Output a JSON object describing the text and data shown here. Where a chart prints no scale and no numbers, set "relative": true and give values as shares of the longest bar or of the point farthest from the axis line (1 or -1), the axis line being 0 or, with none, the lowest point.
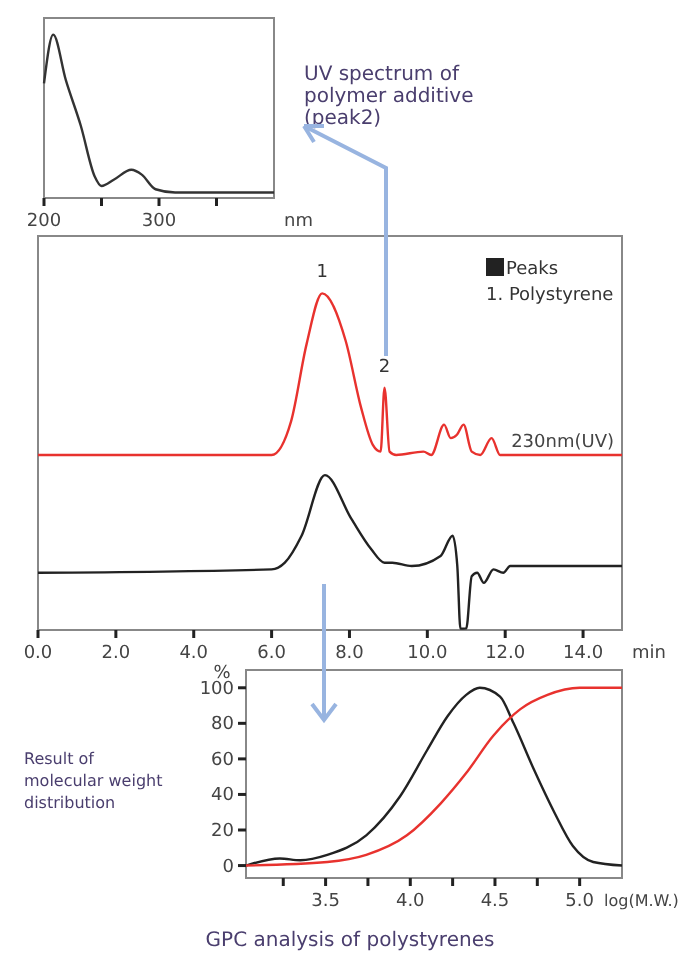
{
  "chart_data": [
    {
      "type": "line",
      "relative": true,
      "xlim": [
        200,
        400
      ],
      "xticks": [
        200,
        {
          "value": 250,
          "label": null
        },
        300,
        {
          "value": 350,
          "label": null
        }
      ],
      "xlabel": "nm",
      "x": [
        200,
        208,
        219,
        232,
        244,
        250,
        261,
        276,
        285,
        297,
        314,
        400
      ],
      "series": [
        {
          "color": "#333333",
          "values": [
            0.7,
            1,
            0.72,
            0.44,
            0.13,
            0.07,
            0.11,
            0.17,
            0.14,
            0.05,
            0.03,
            0.03
          ]
        }
      ],
      "annotations": [
        "UV spectrum of polymer additive (peak2)"
      ]
    },
    {
      "type": "line",
      "relative": true,
      "xlim": [
        0,
        15
      ],
      "xlabel": "min",
      "xticks": [
        {
          "value": 0,
          "label": "0.0"
        },
        {
          "value": 2,
          "label": "2.0"
        },
        {
          "value": 4,
          "label": "4.0"
        },
        {
          "value": 6,
          "label": "6.0"
        },
        {
          "value": 8,
          "label": "8.0"
        },
        {
          "value": 10,
          "label": "10.0"
        },
        {
          "value": 12,
          "label": "12.0"
        },
        {
          "value": 14,
          "label": "14.0"
        }
      ],
      "series": [
        {
          "name": "230nm(UV)",
          "color": "#e8322e",
          "x": [
            0,
            6.0,
            6.5,
            6.9,
            7.3,
            7.9,
            8.3,
            8.6,
            8.8,
            8.9,
            9.03,
            9.2,
            9.9,
            10.1,
            10.43,
            10.6,
            10.76,
            10.93,
            11.14,
            11.36,
            11.65,
            11.87,
            15
          ],
          "values": [
            0.52,
            0.52,
            0.62,
            0.85,
            1.0,
            0.86,
            0.66,
            0.55,
            0.53,
            0.72,
            0.53,
            0.52,
            0.53,
            0.52,
            0.61,
            0.57,
            0.58,
            0.61,
            0.53,
            0.52,
            0.57,
            0.52,
            0.52
          ]
        },
        {
          "color": "#222222",
          "x": [
            0,
            6.0,
            6.34,
            6.77,
            7.37,
            8.05,
            8.56,
            8.9,
            9.1,
            9.6,
            10.34,
            10.65,
            10.77,
            10.85,
            11.0,
            11.14,
            11.28,
            11.45,
            11.7,
            11.95,
            12.13,
            15
          ],
          "values": [
            0.17,
            0.18,
            0.2,
            0.28,
            0.46,
            0.33,
            0.24,
            0.2,
            0.2,
            0.19,
            0.22,
            0.28,
            0.19,
            0.004,
            0.005,
            0.16,
            0.17,
            0.14,
            0.18,
            0.17,
            0.19,
            0.19
          ]
        }
      ],
      "annotations": [
        {
          "text": "1",
          "x": 7.3,
          "y": 1.0
        },
        {
          "text": "2",
          "x": 8.9,
          "y": 0.72
        },
        "Peaks",
        "1. Polystyrene"
      ]
    },
    {
      "type": "line",
      "xlim": [
        3.03,
        5.25
      ],
      "ylim": [
        -7,
        110
      ],
      "xlabel": "log(M.W.)",
      "ylabel": "%",
      "xticks": [
        {
          "value": 3.25,
          "label": null
        },
        3.5,
        {
          "value": 3.75,
          "label": null
        },
        {
          "value": 4,
          "label": "4.0"
        },
        {
          "value": 4.25,
          "label": null
        },
        4.5,
        {
          "value": 4.75,
          "label": null
        },
        {
          "value": 5,
          "label": "5.0"
        }
      ],
      "yticks": [
        0,
        20,
        40,
        60,
        80,
        100
      ],
      "series": [
        {
          "color": "#222222",
          "x": [
            3.03,
            3.23,
            3.35,
            3.51,
            3.74,
            3.94,
            4.1,
            4.22,
            4.33,
            4.41,
            4.53,
            4.61,
            4.73,
            4.85,
            4.96,
            5.08,
            5.25
          ],
          "values": [
            0,
            4,
            3,
            6,
            17,
            39,
            65,
            84,
            96,
            100,
            95,
            80,
            54,
            30,
            11,
            2,
            0
          ]
        },
        {
          "color": "#e8322e",
          "x": [
            3.03,
            3.51,
            3.74,
            3.98,
            4.18,
            4.33,
            4.49,
            4.65,
            4.81,
            5.0,
            5.25
          ],
          "values": [
            0,
            2,
            6,
            17,
            35,
            52,
            73,
            88,
            96,
            100,
            100
          ]
        }
      ],
      "annotations": [
        "Result of molecular weight distribution",
        "GPC analysis of polystyrenes"
      ]
    }
  ]
}
